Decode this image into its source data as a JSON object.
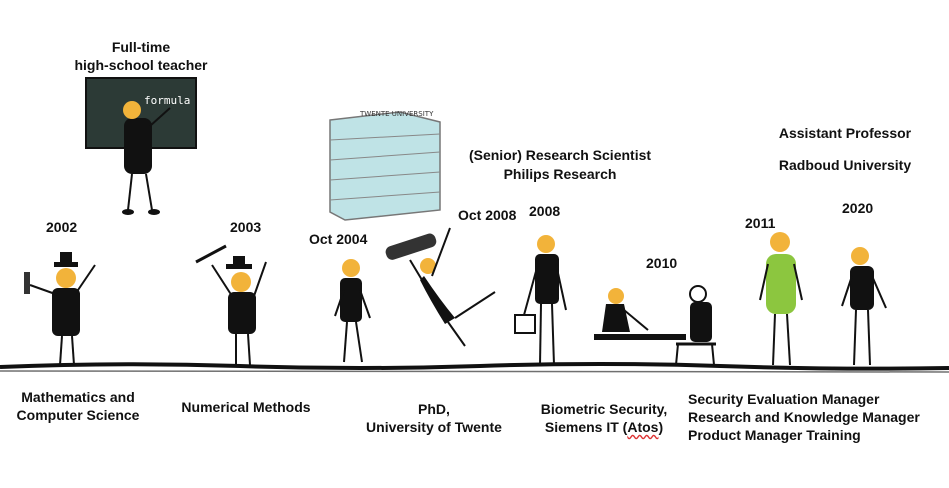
{
  "top_labels": {
    "teacher_line1": "Full-time",
    "teacher_line2": "high-school teacher",
    "philips_line1": "(Senior) Research Scientist",
    "philips_line2": "Philips Research",
    "professor_line1": "Assistant Professor",
    "professor_line2": "Radboud University",
    "building_sign": "TWENTE UNIVERSITY",
    "board_writing": "formula"
  },
  "years": {
    "y2002": "2002",
    "y2003": "2003",
    "y2004": "Oct 2004",
    "y2008a": "Oct 2008",
    "y2008b": "2008",
    "y2010": "2010",
    "y2011": "2011",
    "y2020": "2020"
  },
  "bottom_labels": {
    "math_line1": "Mathematics and",
    "math_line2": "Computer Science",
    "numerical": "Numerical Methods",
    "phd_line1": "PhD,",
    "phd_line2": "University of Twente",
    "bio_line1": "Biometric Security,",
    "bio_line2_a": "Siemens IT (",
    "bio_line2_b": "Atos",
    "bio_line2_c": ")",
    "sec_line1": "Security Evaluation Manager",
    "sec_line2": "Research and Knowledge Manager",
    "sec_line3": "Product Manager Training"
  },
  "colors": {
    "hair": "#f2b33a",
    "ink": "#111111",
    "board": "#2c3a36",
    "dress_green": "#8cc63f",
    "building": "#bfe3e6"
  }
}
